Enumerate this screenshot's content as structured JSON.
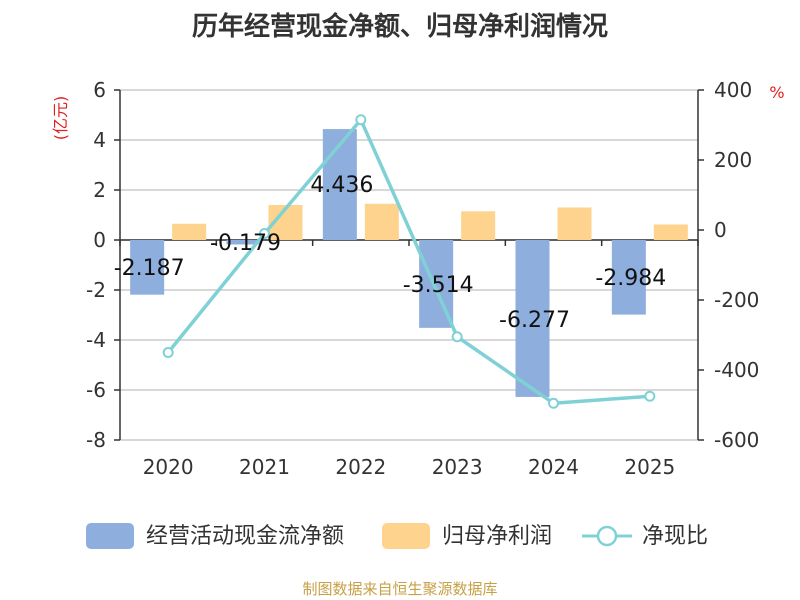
{
  "title": "历年经营现金净额、归母净利润情况",
  "source": "制图数据来自恒生聚源数据库",
  "chart_data": {
    "type": "bar+line",
    "categories": [
      "2020",
      "2021",
      "2022",
      "2023",
      "2024",
      "2025"
    ],
    "series": [
      {
        "name": "经营活动现金流净额",
        "type": "bar",
        "axis": "left",
        "color": "#8eaedd",
        "values": [
          -2.187,
          -0.179,
          4.436,
          -3.514,
          -6.277,
          -2.984
        ],
        "labels": [
          "-2.187",
          "-0.179",
          "4.436",
          "-3.514",
          "-6.277",
          "-2.984"
        ]
      },
      {
        "name": "归母净利润",
        "type": "bar",
        "axis": "left",
        "color": "#fdd38e",
        "values": [
          0.65,
          1.4,
          1.45,
          1.15,
          1.3,
          0.62
        ]
      },
      {
        "name": "净现比",
        "type": "line",
        "axis": "right",
        "color": "#7fd1d5",
        "values": [
          -350,
          -10,
          315,
          -305,
          -495,
          -475
        ]
      }
    ],
    "y_left": {
      "label": "(亿元)",
      "ylim": [
        -8,
        6
      ],
      "ticks": [
        6,
        4,
        2,
        0,
        -2,
        -4,
        -6,
        -8
      ]
    },
    "y_right": {
      "label": "%",
      "ylim": [
        -600,
        400
      ],
      "ticks": [
        400,
        200,
        0,
        -200,
        -400,
        -600
      ]
    },
    "legend": "bottom"
  }
}
